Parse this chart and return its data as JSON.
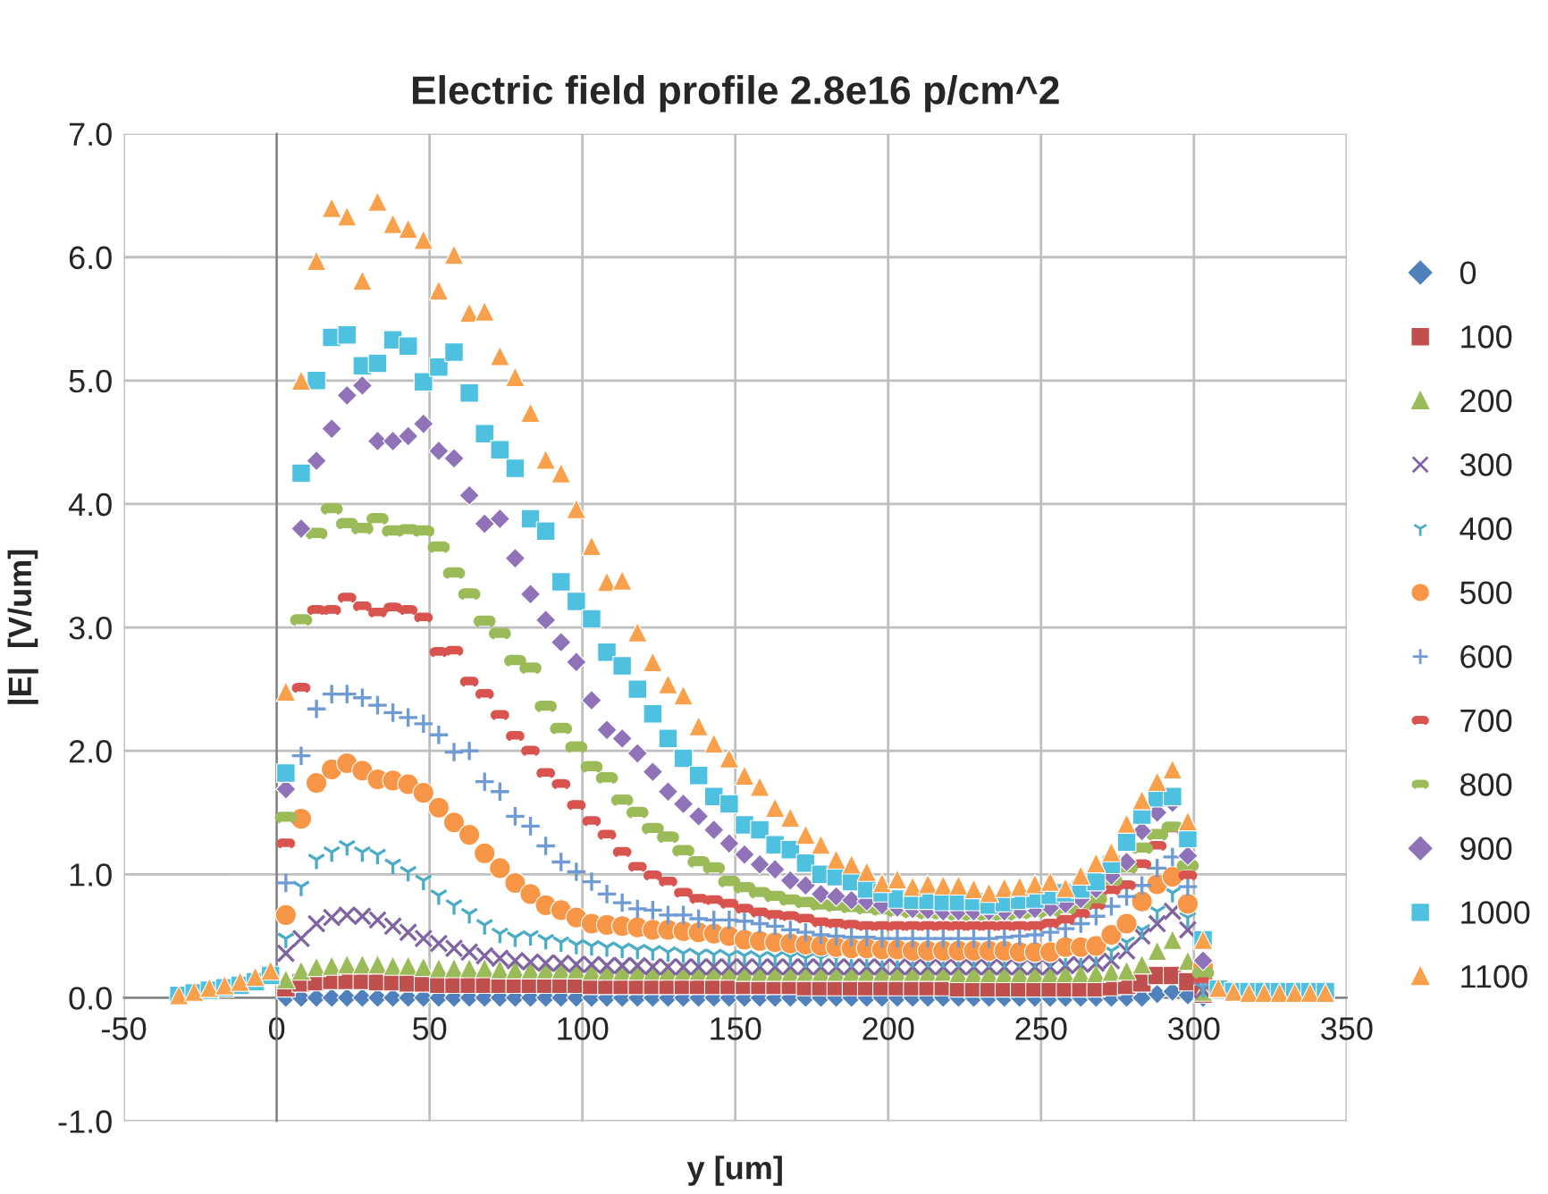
{
  "chart_data": {
    "type": "scatter",
    "title": "Electric field profile 2.8e16 p/cm^2",
    "xlabel": "y [um]",
    "ylabel": "|E|  [V/um]",
    "x": [
      -32,
      -27,
      -22,
      -17,
      -12,
      -7,
      -2,
      3,
      8,
      13,
      18,
      23,
      28,
      33,
      38,
      43,
      48,
      53,
      58,
      63,
      68,
      73,
      78,
      83,
      88,
      93,
      98,
      103,
      108,
      113,
      118,
      123,
      128,
      133,
      138,
      143,
      148,
      153,
      158,
      163,
      168,
      173,
      178,
      183,
      188,
      193,
      198,
      203,
      208,
      213,
      218,
      223,
      228,
      233,
      238,
      243,
      248,
      253,
      258,
      263,
      268,
      273,
      278,
      283,
      288,
      293,
      298,
      303,
      308,
      313,
      318,
      323,
      328,
      333,
      338,
      343
    ],
    "xlim": [
      -50,
      350
    ],
    "xticks": [
      -50,
      0,
      50,
      100,
      150,
      200,
      250,
      300,
      350
    ],
    "ylim": [
      -1,
      7
    ],
    "yticks": [
      {
        "value": -1,
        "label": "-1.0"
      },
      {
        "value": 0,
        "label": "0.0"
      },
      {
        "value": 1,
        "label": "1.0"
      },
      {
        "value": 2,
        "label": "2.0"
      },
      {
        "value": 3,
        "label": "3.0"
      },
      {
        "value": 4,
        "label": "4.0"
      },
      {
        "value": 5,
        "label": "5.0"
      },
      {
        "value": 6,
        "label": "6.0"
      },
      {
        "value": 7,
        "label": "7.0"
      }
    ],
    "grid": true,
    "legend": "right",
    "series": [
      {
        "name": "0",
        "color": "#4f81bd",
        "marker": "diamond",
        "values": [
          null,
          null,
          null,
          null,
          null,
          null,
          null,
          0.0,
          0.0,
          0.0,
          0.0,
          0.0,
          0.0,
          0.0,
          0.0,
          0.0,
          0.0,
          0.0,
          0.0,
          0.0,
          0.0,
          0.0,
          0.0,
          0.0,
          0.0,
          0.0,
          0.0,
          0.0,
          0.0,
          0.0,
          0.0,
          0.0,
          0.0,
          0.0,
          0.0,
          0.0,
          0.0,
          0.0,
          0.0,
          0.0,
          0.0,
          0.0,
          0.0,
          0.0,
          0.0,
          0.0,
          0.0,
          0.0,
          0.0,
          0.0,
          0.0,
          0.0,
          0.0,
          0.0,
          0.0,
          0.0,
          0.0,
          0.0,
          0.0,
          0.0,
          0.0,
          0.0,
          0.0,
          0.0,
          0.03,
          0.05,
          0.02,
          0.0,
          null,
          null,
          null,
          null,
          null,
          null,
          null,
          null
        ]
      },
      {
        "name": "100",
        "color": "#c0504d",
        "marker": "square",
        "values": [
          null,
          null,
          null,
          null,
          null,
          null,
          null,
          0.08,
          0.12,
          0.13,
          0.14,
          0.14,
          0.14,
          0.13,
          0.13,
          0.12,
          0.12,
          0.11,
          0.11,
          0.11,
          0.11,
          0.11,
          0.11,
          0.11,
          0.11,
          0.11,
          0.11,
          0.1,
          0.1,
          0.1,
          0.1,
          0.1,
          0.1,
          0.1,
          0.1,
          0.1,
          0.1,
          0.1,
          0.1,
          0.1,
          0.1,
          0.09,
          0.09,
          0.09,
          0.09,
          0.09,
          0.09,
          0.09,
          0.09,
          0.09,
          0.09,
          0.08,
          0.08,
          0.08,
          0.08,
          0.08,
          0.08,
          0.08,
          0.08,
          0.08,
          0.08,
          0.09,
          0.1,
          0.12,
          0.18,
          0.18,
          0.13,
          0.03,
          null,
          null,
          null,
          null,
          null,
          null,
          null,
          null
        ]
      },
      {
        "name": "200",
        "color": "#9bbb59",
        "marker": "triangle",
        "values": [
          null,
          null,
          null,
          null,
          null,
          null,
          null,
          0.15,
          0.22,
          0.25,
          0.26,
          0.27,
          0.27,
          0.27,
          0.26,
          0.26,
          0.25,
          0.24,
          0.24,
          0.24,
          0.24,
          0.23,
          0.23,
          0.23,
          0.23,
          0.23,
          0.23,
          0.22,
          0.22,
          0.22,
          0.22,
          0.22,
          0.22,
          0.22,
          0.22,
          0.22,
          0.22,
          0.21,
          0.21,
          0.21,
          0.21,
          0.21,
          0.21,
          0.21,
          0.21,
          0.21,
          0.21,
          0.21,
          0.21,
          0.21,
          0.21,
          0.2,
          0.2,
          0.2,
          0.2,
          0.2,
          0.2,
          0.2,
          0.2,
          0.2,
          0.2,
          0.21,
          0.22,
          0.27,
          0.38,
          0.47,
          0.3,
          0.05,
          null,
          null,
          null,
          null,
          null,
          null,
          null,
          null
        ]
      },
      {
        "name": "300",
        "color": "#8064a2",
        "marker": "cross",
        "values": [
          null,
          null,
          null,
          null,
          null,
          null,
          null,
          0.36,
          0.48,
          0.6,
          0.65,
          0.67,
          0.66,
          0.63,
          0.58,
          0.53,
          0.48,
          0.44,
          0.4,
          0.37,
          0.34,
          0.32,
          0.3,
          0.29,
          0.28,
          0.28,
          0.27,
          0.27,
          0.26,
          0.26,
          0.26,
          0.25,
          0.25,
          0.25,
          0.25,
          0.25,
          0.25,
          0.25,
          0.25,
          0.25,
          0.25,
          0.25,
          0.25,
          0.25,
          0.25,
          0.25,
          0.25,
          0.25,
          0.25,
          0.25,
          0.25,
          0.25,
          0.25,
          0.25,
          0.25,
          0.25,
          0.25,
          0.25,
          0.26,
          0.27,
          0.28,
          0.3,
          0.38,
          0.5,
          0.6,
          0.7,
          0.55,
          0.06,
          null,
          null,
          null,
          null,
          null,
          null,
          null,
          null
        ]
      },
      {
        "name": "400",
        "color": "#4bacc6",
        "values": [
          null,
          null,
          null,
          null,
          null,
          null,
          null,
          0.48,
          0.9,
          1.12,
          1.18,
          1.23,
          1.18,
          1.16,
          1.08,
          1.02,
          0.95,
          0.83,
          0.75,
          0.68,
          0.59,
          0.52,
          0.49,
          0.5,
          0.47,
          0.45,
          0.43,
          0.42,
          0.41,
          0.4,
          0.39,
          0.38,
          0.37,
          0.36,
          0.35,
          0.35,
          0.34,
          0.34,
          0.33,
          0.33,
          0.33,
          0.32,
          0.32,
          0.32,
          0.32,
          0.32,
          0.32,
          0.32,
          0.32,
          0.32,
          0.32,
          0.32,
          0.32,
          0.32,
          0.32,
          0.32,
          0.32,
          0.32,
          0.33,
          0.33,
          0.34,
          0.38,
          0.45,
          0.55,
          0.7,
          0.85,
          0.65,
          0.08,
          null,
          null,
          null,
          null,
          null,
          null,
          null,
          null
        ]
      },
      {
        "name": "500",
        "color": "#f79646",
        "marker": "circle",
        "values": [
          null,
          null,
          null,
          null,
          null,
          null,
          null,
          0.67,
          1.45,
          1.74,
          1.85,
          1.9,
          1.84,
          1.77,
          1.76,
          1.73,
          1.66,
          1.54,
          1.42,
          1.32,
          1.17,
          1.05,
          0.93,
          0.84,
          0.75,
          0.71,
          0.65,
          0.6,
          0.59,
          0.58,
          0.57,
          0.55,
          0.55,
          0.54,
          0.53,
          0.52,
          0.5,
          0.47,
          0.46,
          0.45,
          0.44,
          0.43,
          0.42,
          0.41,
          0.4,
          0.4,
          0.39,
          0.39,
          0.38,
          0.38,
          0.38,
          0.38,
          0.38,
          0.38,
          0.38,
          0.37,
          0.37,
          0.37,
          0.41,
          0.41,
          0.42,
          0.51,
          0.6,
          0.78,
          0.92,
          0.98,
          0.76,
          0.25,
          null,
          null,
          null,
          null,
          null,
          null,
          null,
          null
        ]
      },
      {
        "name": "600",
        "color": "#6f9bd4",
        "values": [
          null,
          null,
          null,
          null,
          null,
          null,
          null,
          0.93,
          1.96,
          2.34,
          2.46,
          2.46,
          2.43,
          2.37,
          2.31,
          2.27,
          2.22,
          2.13,
          1.99,
          2.0,
          1.75,
          1.67,
          1.47,
          1.39,
          1.23,
          1.1,
          1.02,
          0.94,
          0.84,
          0.77,
          0.72,
          0.71,
          0.67,
          0.67,
          0.64,
          0.63,
          0.63,
          0.62,
          0.6,
          0.58,
          0.55,
          0.53,
          0.51,
          0.5,
          0.49,
          0.49,
          0.48,
          0.48,
          0.48,
          0.48,
          0.48,
          0.48,
          0.48,
          0.48,
          0.49,
          0.5,
          0.51,
          0.53,
          0.56,
          0.6,
          0.66,
          0.74,
          0.82,
          0.91,
          1.05,
          1.14,
          0.9,
          0.12,
          null,
          null,
          null,
          null,
          null,
          null,
          null,
          null
        ]
      },
      {
        "name": "700",
        "color": "#d9534f",
        "values": [
          null,
          null,
          null,
          null,
          null,
          null,
          null,
          1.25,
          2.51,
          3.14,
          3.14,
          3.24,
          3.17,
          3.12,
          3.16,
          3.14,
          3.08,
          2.8,
          2.81,
          2.56,
          2.46,
          2.29,
          2.12,
          2.0,
          1.82,
          1.73,
          1.56,
          1.43,
          1.32,
          1.18,
          1.06,
          0.99,
          0.94,
          0.85,
          0.8,
          0.79,
          0.76,
          0.72,
          0.69,
          0.67,
          0.66,
          0.64,
          0.61,
          0.6,
          0.59,
          0.58,
          0.58,
          0.58,
          0.58,
          0.58,
          0.58,
          0.58,
          0.58,
          0.58,
          0.58,
          0.58,
          0.58,
          0.6,
          0.63,
          0.68,
          0.75,
          0.87,
          0.91,
          1.08,
          1.23,
          1.37,
          0.99,
          0.15,
          null,
          null,
          null,
          null,
          null,
          null,
          null,
          null
        ]
      },
      {
        "name": "800",
        "color": "#9bbb59",
        "values": [
          null,
          null,
          null,
          null,
          null,
          null,
          null,
          1.46,
          3.06,
          3.76,
          3.96,
          3.84,
          3.8,
          3.88,
          3.78,
          3.79,
          3.78,
          3.65,
          3.44,
          3.27,
          3.05,
          2.95,
          2.73,
          2.67,
          2.36,
          2.18,
          2.03,
          1.87,
          1.78,
          1.6,
          1.5,
          1.37,
          1.3,
          1.19,
          1.1,
          1.05,
          0.94,
          0.89,
          0.85,
          0.82,
          0.79,
          0.77,
          0.75,
          0.74,
          0.73,
          0.72,
          0.71,
          0.7,
          0.69,
          0.68,
          0.68,
          0.67,
          0.67,
          0.67,
          0.67,
          0.68,
          0.69,
          0.7,
          0.72,
          0.76,
          0.8,
          0.95,
          1.05,
          1.21,
          1.32,
          1.38,
          1.07,
          0.2,
          null,
          null,
          null,
          null,
          null,
          null,
          null,
          null
        ]
      },
      {
        "name": "900",
        "color": "#8f72b8",
        "marker": "diamond",
        "values": [
          null,
          null,
          null,
          null,
          null,
          null,
          null,
          1.69,
          3.8,
          4.35,
          4.61,
          4.88,
          4.96,
          4.51,
          4.51,
          4.55,
          4.65,
          4.43,
          4.37,
          4.07,
          3.84,
          3.88,
          3.56,
          3.27,
          3.06,
          2.88,
          2.72,
          2.41,
          2.17,
          2.1,
          1.98,
          1.83,
          1.67,
          1.57,
          1.47,
          1.36,
          1.25,
          1.16,
          1.08,
          1.04,
          0.95,
          0.91,
          0.84,
          0.82,
          0.79,
          0.78,
          0.75,
          0.73,
          0.72,
          0.71,
          0.7,
          0.7,
          0.7,
          0.7,
          0.7,
          0.71,
          0.72,
          0.73,
          0.76,
          0.8,
          0.88,
          0.99,
          1.1,
          1.35,
          1.5,
          1.58,
          1.15,
          0.3,
          null,
          null,
          null,
          null,
          null,
          null,
          null,
          null
        ]
      },
      {
        "name": "1000",
        "color": "#4fc1e0",
        "marker": "square",
        "values": [
          0.02,
          0.04,
          0.06,
          0.08,
          0.1,
          0.13,
          0.18,
          1.82,
          4.25,
          5.0,
          5.35,
          5.37,
          5.12,
          5.14,
          5.33,
          5.28,
          4.99,
          5.11,
          5.23,
          4.9,
          4.57,
          4.44,
          4.29,
          3.88,
          3.78,
          3.37,
          3.21,
          3.07,
          2.8,
          2.69,
          2.5,
          2.3,
          2.1,
          1.94,
          1.8,
          1.63,
          1.57,
          1.4,
          1.36,
          1.24,
          1.2,
          1.09,
          1.0,
          0.98,
          0.94,
          0.88,
          0.85,
          0.8,
          0.79,
          0.79,
          0.78,
          0.78,
          0.78,
          0.75,
          0.77,
          0.79,
          0.8,
          0.83,
          0.85,
          0.88,
          0.94,
          1.08,
          1.26,
          1.48,
          1.62,
          1.63,
          1.29,
          0.47,
          0.07,
          0.05,
          0.05,
          0.05,
          0.05,
          0.05,
          0.05,
          0.05
        ]
      },
      {
        "name": "1100",
        "color": "#f8a04c",
        "marker": "triangle",
        "values": [
          0.02,
          0.05,
          0.08,
          0.1,
          0.13,
          0.17,
          0.22,
          2.48,
          5.0,
          5.97,
          6.4,
          6.33,
          5.81,
          6.45,
          6.27,
          6.23,
          6.14,
          5.73,
          6.02,
          5.55,
          5.56,
          5.2,
          5.03,
          4.74,
          4.36,
          4.25,
          3.96,
          3.66,
          3.37,
          3.38,
          2.96,
          2.72,
          2.54,
          2.45,
          2.2,
          2.06,
          1.94,
          1.8,
          1.71,
          1.54,
          1.46,
          1.32,
          1.24,
          1.12,
          1.08,
          1.02,
          0.93,
          0.96,
          0.9,
          0.92,
          0.91,
          0.91,
          0.88,
          0.85,
          0.89,
          0.9,
          0.92,
          0.94,
          0.89,
          0.99,
          1.09,
          1.18,
          1.41,
          1.6,
          1.75,
          1.85,
          1.43,
          0.47,
          0.08,
          0.05,
          0.04,
          0.04,
          0.04,
          0.04,
          0.04,
          0.04
        ]
      }
    ]
  }
}
